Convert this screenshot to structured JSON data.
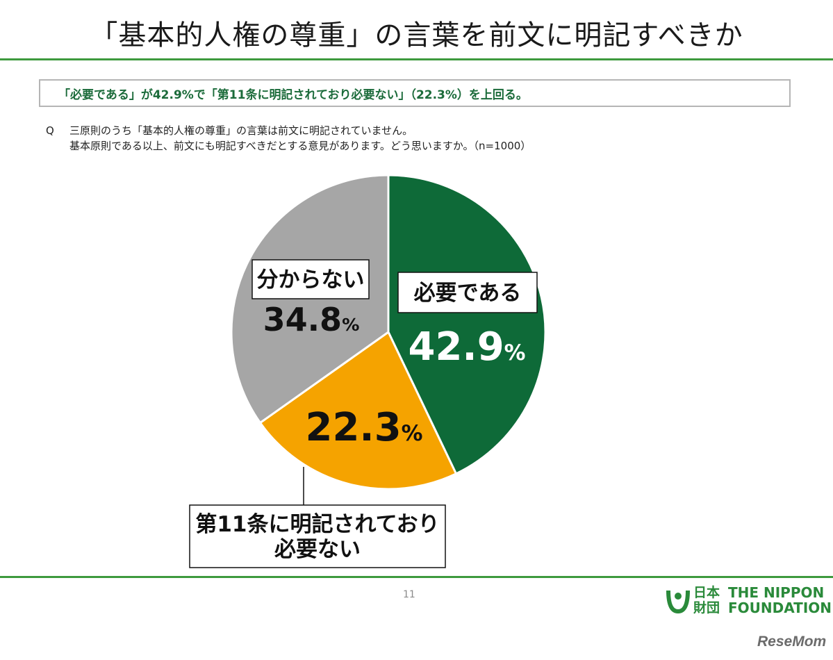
{
  "title": "「基本的人権の尊重」の言葉を前文に明記すべきか",
  "summary": "「必要である」が42.9%で「第11条に明記されており必要ない」（22.3%）を上回る。",
  "question": {
    "prefix": "Q",
    "line1": "三原則のうち「基本的人権の尊重」の言葉は前文に明記されていません。",
    "line2": "基本原則である以上、前文にも明記すべきだとする意見があります。どう思いますか。（n=1000）"
  },
  "chart_data": {
    "type": "pie",
    "n": 1000,
    "slices": [
      {
        "label": "必要である",
        "value": 42.9,
        "color": "#0e6a38"
      },
      {
        "label": "第11条に明記されており 必要ない",
        "label_lines": [
          "第11条に明記されており",
          "必要ない"
        ],
        "value": 22.3,
        "color": "#f5a300"
      },
      {
        "label": "分からない",
        "value": 34.8,
        "color": "#a6a6a6"
      }
    ],
    "value_unit": "%"
  },
  "page_number": "11",
  "logo": {
    "jp_line1": "日本",
    "jp_line2": "財団",
    "en_line1": "THE NIPPON",
    "en_line2": "FOUNDATION",
    "color": "#2a8a3a"
  },
  "watermark": "ReseMom"
}
